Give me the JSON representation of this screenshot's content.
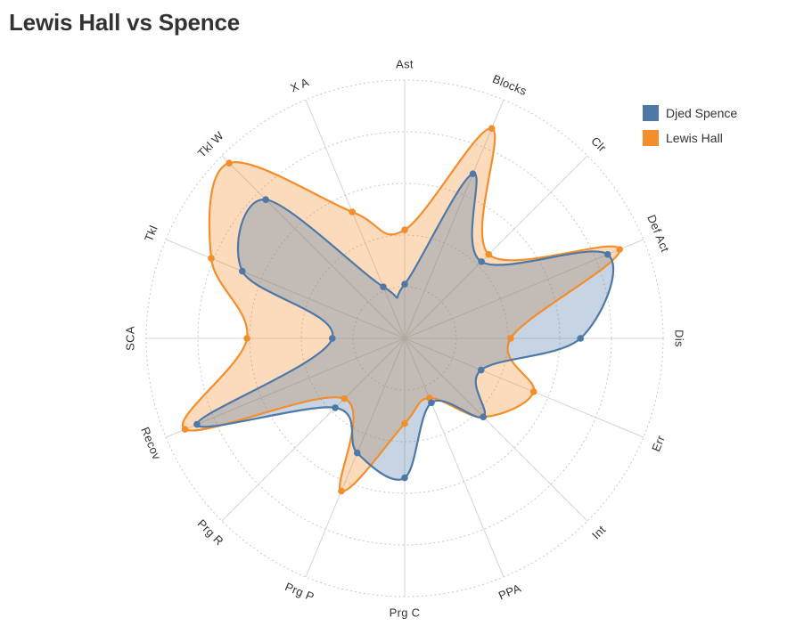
{
  "title": "Lewis Hall vs Spence",
  "legend": [
    {
      "name": "Djed Spence",
      "color": "#4e79a7"
    },
    {
      "name": "Lewis Hall",
      "color": "#f28e2b"
    }
  ],
  "chart_data": {
    "type": "radar",
    "title": "Lewis Hall vs Spence",
    "axes": [
      "Ast",
      "Blocks",
      "Clr",
      "Def Act",
      "Dis",
      "Err",
      "Int",
      "PPA",
      "Prg C",
      "Prg P",
      "Prg R",
      "Recov",
      "SCA",
      "Tkl",
      "Tkl W",
      "X A"
    ],
    "rmax": 5,
    "grid": true,
    "legend_position": "top-right",
    "series": [
      {
        "name": "Djed Spence",
        "color": "#4e79a7",
        "values": [
          1.05,
          3.45,
          2.1,
          4.25,
          3.4,
          1.6,
          2.15,
          1.35,
          2.7,
          2.4,
          1.9,
          4.35,
          1.4,
          3.4,
          3.8,
          1.08
        ]
      },
      {
        "name": "Lewis Hall",
        "color": "#f28e2b",
        "values": [
          2.1,
          4.4,
          2.3,
          4.5,
          2.05,
          2.7,
          2.15,
          1.25,
          1.65,
          3.2,
          1.65,
          4.6,
          3.05,
          4.05,
          4.8,
          2.65
        ]
      }
    ]
  }
}
